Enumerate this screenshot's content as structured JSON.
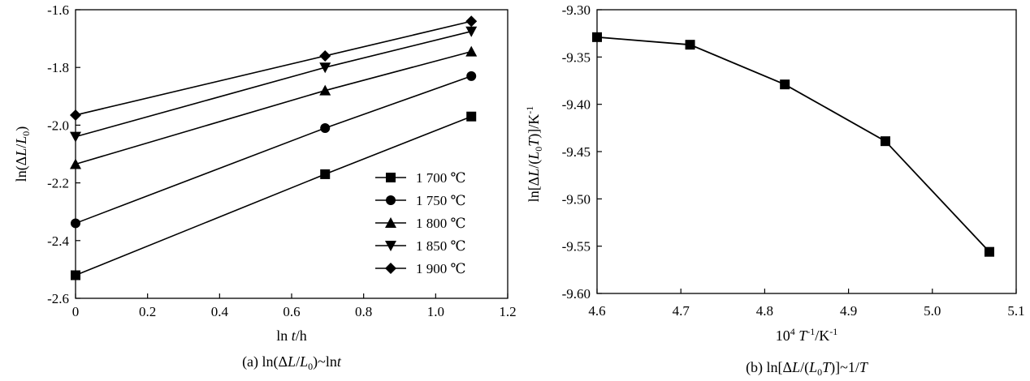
{
  "chart_data": [
    {
      "type": "line",
      "caption": "(a) ln(ΔL/L₀)~lnt",
      "xlabel": "ln t/h",
      "ylabel": "ln(ΔL/L₀)",
      "xlim": [
        0,
        1.2
      ],
      "ylim": [
        -2.6,
        -1.6
      ],
      "xticks": [
        0,
        0.2,
        0.4,
        0.6,
        0.8,
        1.0,
        1.2
      ],
      "xtick_labels": [
        "0",
        "0.2",
        "0.4",
        "0.6",
        "0.8",
        "1.0",
        "1.2"
      ],
      "yticks": [
        -2.6,
        -2.4,
        -2.2,
        -2.0,
        -1.8,
        -1.6
      ],
      "ytick_labels": [
        "-2.6",
        "-2.4",
        "-2.2",
        "-2.0",
        "-1.8",
        "-1.6"
      ],
      "x": [
        0,
        0.693,
        1.099
      ],
      "legend_position": "bottom-right",
      "series": [
        {
          "name": "1 700 ℃",
          "marker": "square",
          "values": [
            -2.52,
            -2.17,
            -1.97
          ]
        },
        {
          "name": "1 750 ℃",
          "marker": "circle",
          "values": [
            -2.34,
            -2.01,
            -1.83
          ]
        },
        {
          "name": "1 800 ℃",
          "marker": "triangle-up",
          "values": [
            -2.135,
            -1.88,
            -1.745
          ]
        },
        {
          "name": "1 850 ℃",
          "marker": "triangle-down",
          "values": [
            -2.04,
            -1.8,
            -1.675
          ]
        },
        {
          "name": "1 900 ℃",
          "marker": "diamond",
          "values": [
            -1.965,
            -1.76,
            -1.64
          ]
        }
      ]
    },
    {
      "type": "line",
      "caption": "(b) ln[ΔL/(L₀T)]~1/T",
      "xlabel": "10⁴ T⁻¹/K⁻¹",
      "ylabel": "ln[ΔL/(L₀T)]/K⁻¹",
      "xlim": [
        4.6,
        5.1
      ],
      "ylim": [
        -9.6,
        -9.3
      ],
      "xticks": [
        4.6,
        4.7,
        4.8,
        4.9,
        5.0,
        5.1
      ],
      "xtick_labels": [
        "4.6",
        "4.7",
        "4.8",
        "4.9",
        "5.0",
        "5.1"
      ],
      "yticks": [
        -9.6,
        -9.55,
        -9.5,
        -9.45,
        -9.4,
        -9.35,
        -9.3
      ],
      "ytick_labels": [
        "-9.60",
        "-9.55",
        "-9.50",
        "-9.45",
        "-9.40",
        "-9.35",
        "-9.30"
      ],
      "series": [
        {
          "marker": "square",
          "x": [
            4.6,
            4.711,
            4.824,
            4.944,
            5.068
          ],
          "values": [
            -9.329,
            -9.337,
            -9.379,
            -9.439,
            -9.556
          ]
        }
      ]
    }
  ]
}
